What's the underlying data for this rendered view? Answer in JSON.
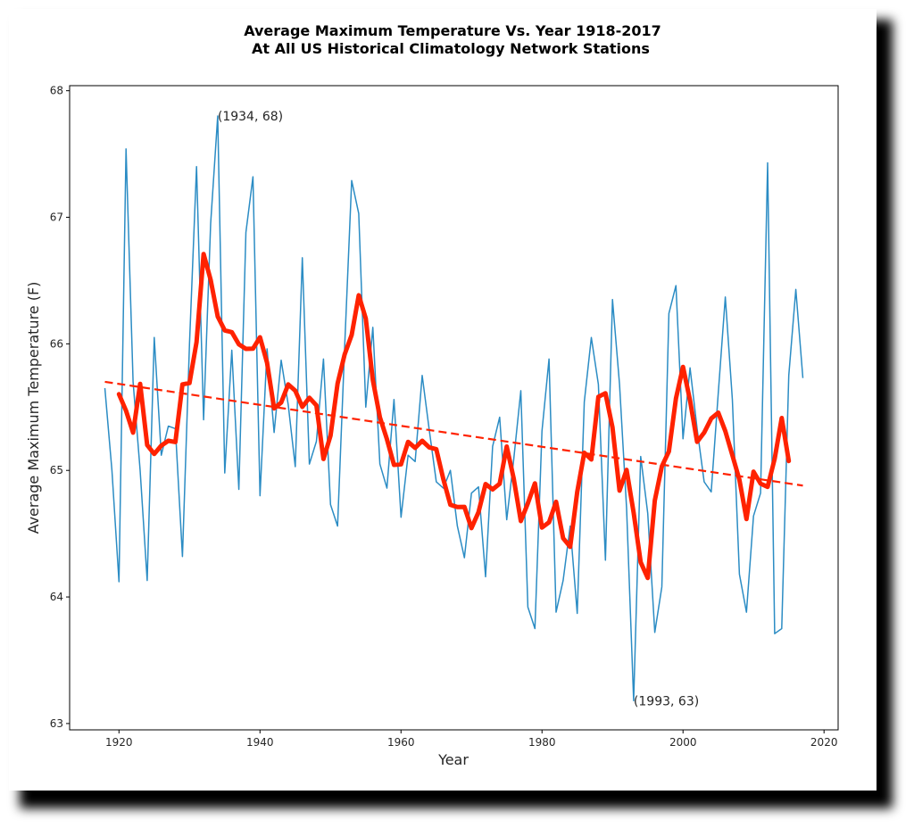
{
  "chart_data": {
    "type": "line",
    "title": "Average Maximum Temperature Vs. Year 1918-2017",
    "subtitle": "At All US Historical Climatology Network Stations",
    "xlabel": "Year",
    "ylabel": "Average Maximum Temperature (F)",
    "xlim": [
      1913,
      2022
    ],
    "ylim": [
      62.95,
      68.04
    ],
    "xticks": [
      1920,
      1940,
      1960,
      1980,
      2000,
      2020
    ],
    "xtick_labels": [
      "1920",
      "1940",
      "1960",
      "1980",
      "2000",
      "2020"
    ],
    "yticks": [
      63,
      64,
      65,
      66,
      67,
      68
    ],
    "ytick_labels": [
      "63",
      "64",
      "65",
      "66",
      "67",
      "68"
    ],
    "grid": false,
    "legend": "none",
    "x": [
      1918,
      1919,
      1920,
      1921,
      1922,
      1923,
      1924,
      1925,
      1926,
      1927,
      1928,
      1929,
      1930,
      1931,
      1932,
      1933,
      1934,
      1935,
      1936,
      1937,
      1938,
      1939,
      1940,
      1941,
      1942,
      1943,
      1944,
      1945,
      1946,
      1947,
      1948,
      1949,
      1950,
      1951,
      1952,
      1953,
      1954,
      1955,
      1956,
      1957,
      1958,
      1959,
      1960,
      1961,
      1962,
      1963,
      1964,
      1965,
      1966,
      1967,
      1968,
      1969,
      1970,
      1971,
      1972,
      1973,
      1974,
      1975,
      1976,
      1977,
      1978,
      1979,
      1980,
      1981,
      1982,
      1983,
      1984,
      1985,
      1986,
      1987,
      1988,
      1989,
      1990,
      1991,
      1992,
      1993,
      1994,
      1995,
      1996,
      1997,
      1998,
      1999,
      2000,
      2001,
      2002,
      2003,
      2004,
      2005,
      2006,
      2007,
      2008,
      2009,
      2010,
      2011,
      2012,
      2013,
      2014,
      2015,
      2016,
      2017
    ],
    "series": [
      {
        "name": "Annual average maximum temperature",
        "color": "#2b8cc4",
        "style": "solid-thin",
        "values": [
          65.65,
          65.0,
          64.12,
          67.54,
          65.7,
          65.0,
          64.13,
          66.05,
          65.12,
          65.35,
          65.33,
          64.32,
          66.0,
          67.4,
          65.4,
          66.95,
          67.8,
          64.98,
          65.95,
          64.85,
          66.88,
          67.32,
          64.8,
          65.96,
          65.3,
          65.87,
          65.52,
          65.03,
          66.68,
          65.05,
          65.23,
          65.88,
          64.73,
          64.56,
          65.97,
          67.29,
          67.03,
          65.5,
          66.13,
          65.05,
          64.86,
          65.56,
          64.63,
          65.12,
          65.07,
          65.75,
          65.32,
          64.91,
          64.86,
          65.0,
          64.56,
          64.31,
          64.82,
          64.87,
          64.16,
          65.19,
          65.42,
          64.61,
          65.09,
          65.63,
          63.92,
          63.75,
          65.31,
          65.88,
          63.88,
          64.13,
          64.56,
          63.87,
          65.54,
          66.05,
          65.68,
          64.29,
          66.35,
          65.68,
          64.7,
          63.18,
          65.11,
          64.66,
          63.72,
          64.08,
          66.24,
          66.46,
          65.25,
          65.81,
          65.33,
          64.91,
          64.83,
          65.61,
          66.37,
          65.56,
          64.18,
          63.88,
          64.64,
          64.82,
          67.43,
          63.71,
          63.75,
          65.75,
          66.43,
          65.73
        ]
      },
      {
        "name": "5-year centered moving average",
        "color": "#ff2200",
        "style": "solid-thick",
        "window": 5,
        "x_range": [
          1920,
          2015
        ]
      },
      {
        "name": "Linear trend",
        "color": "#ff2200",
        "style": "dashed",
        "x": [
          1918,
          2017
        ],
        "values": [
          65.7,
          64.88
        ]
      }
    ],
    "annotations": [
      {
        "text": "(1934, 68)",
        "x": 1934,
        "y": 67.8
      },
      {
        "text": "(1993, 63)",
        "x": 1993,
        "y": 63.18
      }
    ]
  }
}
